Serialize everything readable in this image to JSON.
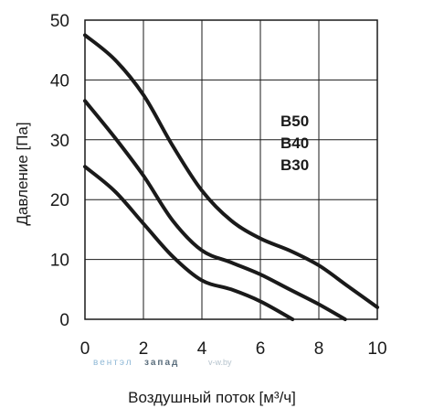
{
  "chart_data": {
    "type": "line",
    "title": "",
    "xlabel": "Воздушный поток [м³/ч]",
    "ylabel": "Давление [Па]",
    "xlim": [
      0,
      10
    ],
    "ylim": [
      0,
      50
    ],
    "x_ticks": [
      "0",
      "2",
      "4",
      "6",
      "8",
      "10"
    ],
    "y_ticks": [
      "0",
      "10",
      "20",
      "30",
      "40",
      "50"
    ],
    "grid": true,
    "legend_position": "right, inside plot",
    "line_color": "#1a1a1a",
    "series": [
      {
        "name": "B50",
        "points": [
          [
            0,
            47.5
          ],
          [
            1,
            43.5
          ],
          [
            2,
            37.5
          ],
          [
            3,
            29
          ],
          [
            4,
            21.5
          ],
          [
            5,
            16.5
          ],
          [
            6,
            13.5
          ],
          [
            7,
            11.5
          ],
          [
            8,
            9
          ],
          [
            9,
            5.5
          ],
          [
            10,
            2
          ]
        ]
      },
      {
        "name": "B40",
        "points": [
          [
            0,
            36.5
          ],
          [
            1,
            30.5
          ],
          [
            2,
            24
          ],
          [
            3,
            16.5
          ],
          [
            4,
            11.5
          ],
          [
            5,
            9.5
          ],
          [
            6,
            7.5
          ],
          [
            7,
            5
          ],
          [
            8,
            2.5
          ],
          [
            8.9,
            0
          ]
        ]
      },
      {
        "name": "B30",
        "points": [
          [
            0,
            25.5
          ],
          [
            1,
            21.5
          ],
          [
            2,
            16
          ],
          [
            3,
            10.5
          ],
          [
            4,
            6.5
          ],
          [
            5,
            5
          ],
          [
            6,
            3
          ],
          [
            7.1,
            0
          ]
        ]
      }
    ]
  },
  "watermark": {
    "part1": "вентэл",
    "part2": "запад",
    "part3": "v-w.by"
  }
}
